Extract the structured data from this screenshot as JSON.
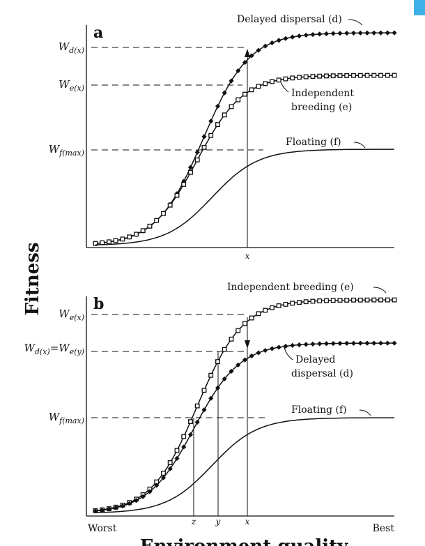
{
  "chart_data": [
    {
      "type": "line",
      "panel_label": "a",
      "ylabel": "Fitness",
      "y_tick_labels": [
        {
          "base": "W",
          "sub": "d(x)"
        },
        {
          "base": "W",
          "sub": "e(x)"
        },
        {
          "base": "W",
          "sub": "f(max)"
        }
      ],
      "x_tick_labels": [
        "x"
      ],
      "series": [
        {
          "name": "Delayed dispersal (d)",
          "marker": "diamond",
          "plateau": 1.0,
          "midpoint": 0.36
        },
        {
          "name": "Independent breeding (e)",
          "marker": "square",
          "plateau": 0.81,
          "midpoint": 0.34
        },
        {
          "name": "Floating (f)",
          "marker": "none",
          "plateau": 0.46,
          "midpoint": 0.39
        }
      ],
      "annotations": [
        "Delayed dispersal (d)",
        "Independent breeding (e)",
        "Floating (f)"
      ]
    },
    {
      "type": "line",
      "panel_label": "b",
      "ylabel": "Fitness",
      "xlabel": "Environment quality",
      "y_tick_labels": [
        {
          "base": "W",
          "sub": "e(x)"
        },
        {
          "base": "W",
          "sub": "d(x)",
          "mid": "=W",
          "sub2": "e(y)"
        },
        {
          "base": "W",
          "sub": "f(max)"
        }
      ],
      "x_tick_labels": [
        "Worst",
        "z",
        "y",
        "x",
        "Best"
      ],
      "series": [
        {
          "name": "Independent breeding (e)",
          "marker": "square",
          "plateau": 1.0,
          "midpoint": 0.34
        },
        {
          "name": "Delayed dispersal (d)",
          "marker": "diamond",
          "plateau": 0.79,
          "midpoint": 0.33
        },
        {
          "name": "Floating (f)",
          "marker": "none",
          "plateau": 0.51,
          "midpoint": 0.39
        }
      ],
      "annotations": [
        "Independent breeding (e)",
        "Delayed dispersal (d)",
        "Floating (f)"
      ]
    }
  ],
  "labels": {
    "ylabel": "Fitness",
    "xlabel": "Environment quality",
    "panel_a": "a",
    "panel_b": "b",
    "a_delayed": "Delayed dispersal (d)",
    "a_indep_1": "Independent",
    "a_indep_2": "breeding (e)",
    "a_floating": "Floating (f)",
    "b_indep": "Independent breeding (e)",
    "b_delayed_1": "Delayed",
    "b_delayed_2": "dispersal (d)",
    "b_floating": "Floating (f)",
    "tick_x": "x",
    "tick_y": "y",
    "tick_z": "z",
    "tick_worst": "Worst",
    "tick_best": "Best",
    "w": "W",
    "w_dx": "d(x)",
    "w_ex": "e(x)",
    "w_fmax": "f(max)",
    "w_eq": "=W",
    "w_ey": "e(y)"
  },
  "colors": {
    "ink": "#111111",
    "corner_accent": "#3fb0e8"
  }
}
